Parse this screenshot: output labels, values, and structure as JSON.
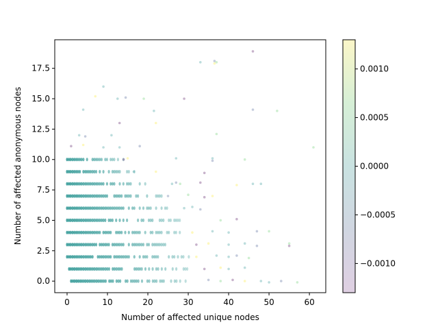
{
  "chart_data": {
    "type": "scatter",
    "title": "",
    "xlabel": "Number of affected unique nodes",
    "ylabel": "Number of affected anonymous nodes",
    "xlim": [
      -3.05,
      64.05
    ],
    "ylim": [
      -0.95,
      19.85
    ],
    "xticks": [
      0,
      10,
      20,
      30,
      40,
      50,
      60
    ],
    "xtick_labels": [
      "0",
      "10",
      "20",
      "30",
      "40",
      "50",
      "60"
    ],
    "yticks": [
      0.0,
      2.5,
      5.0,
      7.5,
      10.0,
      12.5,
      15.0,
      17.5
    ],
    "ytick_labels": [
      "0.0",
      "2.5",
      "5.0",
      "7.5",
      "10.0",
      "12.5",
      "15.0",
      "17.5"
    ],
    "grid": false,
    "colormap": "viridis",
    "alpha": 0.25,
    "colorbar": {
      "vmin": -0.0013,
      "vmax": 0.0013,
      "ticks": [
        -0.001,
        -0.0005,
        0.0,
        0.0005,
        0.001
      ],
      "tick_labels": [
        "−0.0010",
        "−0.0005",
        "0.0000",
        "0.0005",
        "0.0010"
      ]
    },
    "dense_bands": [
      {
        "y": 0,
        "x_start": 1,
        "x_end": 30
      },
      {
        "y": 1,
        "x_start": 0.5,
        "x_end": 30
      },
      {
        "y": 2,
        "x_start": 0,
        "x_end": 31
      },
      {
        "y": 3,
        "x_start": 0,
        "x_end": 30
      },
      {
        "y": 4,
        "x_start": 0,
        "x_end": 29
      },
      {
        "y": 5,
        "x_start": 0,
        "x_end": 28
      },
      {
        "y": 6,
        "x_start": 0,
        "x_end": 27
      },
      {
        "y": 7,
        "x_start": 0,
        "x_end": 26
      },
      {
        "y": 8,
        "x_start": 0,
        "x_end": 22
      },
      {
        "y": 9,
        "x_start": 0,
        "x_end": 17
      },
      {
        "y": 10,
        "x_start": 0,
        "x_end": 14
      }
    ],
    "points": [
      [
        33,
        18
      ],
      [
        36.5,
        18.1
      ],
      [
        37,
        18.0
      ],
      [
        46,
        18.9
      ],
      [
        36.5,
        17.9
      ],
      [
        9,
        16
      ],
      [
        12.5,
        15
      ],
      [
        14.5,
        15.1
      ],
      [
        19,
        15
      ],
      [
        29,
        15
      ],
      [
        7,
        15.2
      ],
      [
        4,
        14.1
      ],
      [
        21.5,
        14
      ],
      [
        46,
        14.1
      ],
      [
        52,
        14
      ],
      [
        13,
        13
      ],
      [
        22,
        13
      ],
      [
        11,
        12
      ],
      [
        3,
        12
      ],
      [
        4.5,
        11.9
      ],
      [
        37,
        12.1
      ],
      [
        1,
        11.1
      ],
      [
        4,
        11.2
      ],
      [
        9,
        11
      ],
      [
        13,
        11
      ],
      [
        18,
        11.1
      ],
      [
        61,
        11
      ],
      [
        14,
        10
      ],
      [
        15,
        10.1
      ],
      [
        27,
        10.1
      ],
      [
        36,
        10.1
      ],
      [
        36,
        9.9
      ],
      [
        44,
        10
      ],
      [
        34,
        8.9
      ],
      [
        22,
        9
      ],
      [
        16.5,
        9
      ],
      [
        26,
        8
      ],
      [
        27,
        8.1
      ],
      [
        28,
        8
      ],
      [
        33,
        8.1
      ],
      [
        42,
        7.9
      ],
      [
        46,
        8
      ],
      [
        48,
        8
      ],
      [
        25,
        7
      ],
      [
        30,
        7.1
      ],
      [
        34,
        6.9
      ],
      [
        36,
        7
      ],
      [
        29,
        6
      ],
      [
        31,
        6.1
      ],
      [
        33,
        5.9
      ],
      [
        38,
        5
      ],
      [
        42,
        5.1
      ],
      [
        31,
        4
      ],
      [
        36,
        4.1
      ],
      [
        40,
        4
      ],
      [
        47,
        4.1
      ],
      [
        50,
        4.1
      ],
      [
        32,
        3
      ],
      [
        35,
        3.1
      ],
      [
        40,
        3
      ],
      [
        44,
        3.1
      ],
      [
        47,
        2.9
      ],
      [
        55,
        3.1
      ],
      [
        55,
        2.9
      ],
      [
        32,
        2
      ],
      [
        37,
        2.1
      ],
      [
        40,
        2
      ],
      [
        42,
        2.1
      ],
      [
        45,
        1.9
      ],
      [
        34,
        1
      ],
      [
        38,
        1.1
      ],
      [
        40,
        1
      ],
      [
        44,
        1.1
      ],
      [
        35,
        0.1
      ],
      [
        38,
        0
      ],
      [
        41,
        0.1
      ],
      [
        44,
        0
      ],
      [
        48,
        0
      ],
      [
        50,
        -0.1
      ],
      [
        53,
        0
      ],
      [
        57,
        -0.1
      ]
    ]
  }
}
